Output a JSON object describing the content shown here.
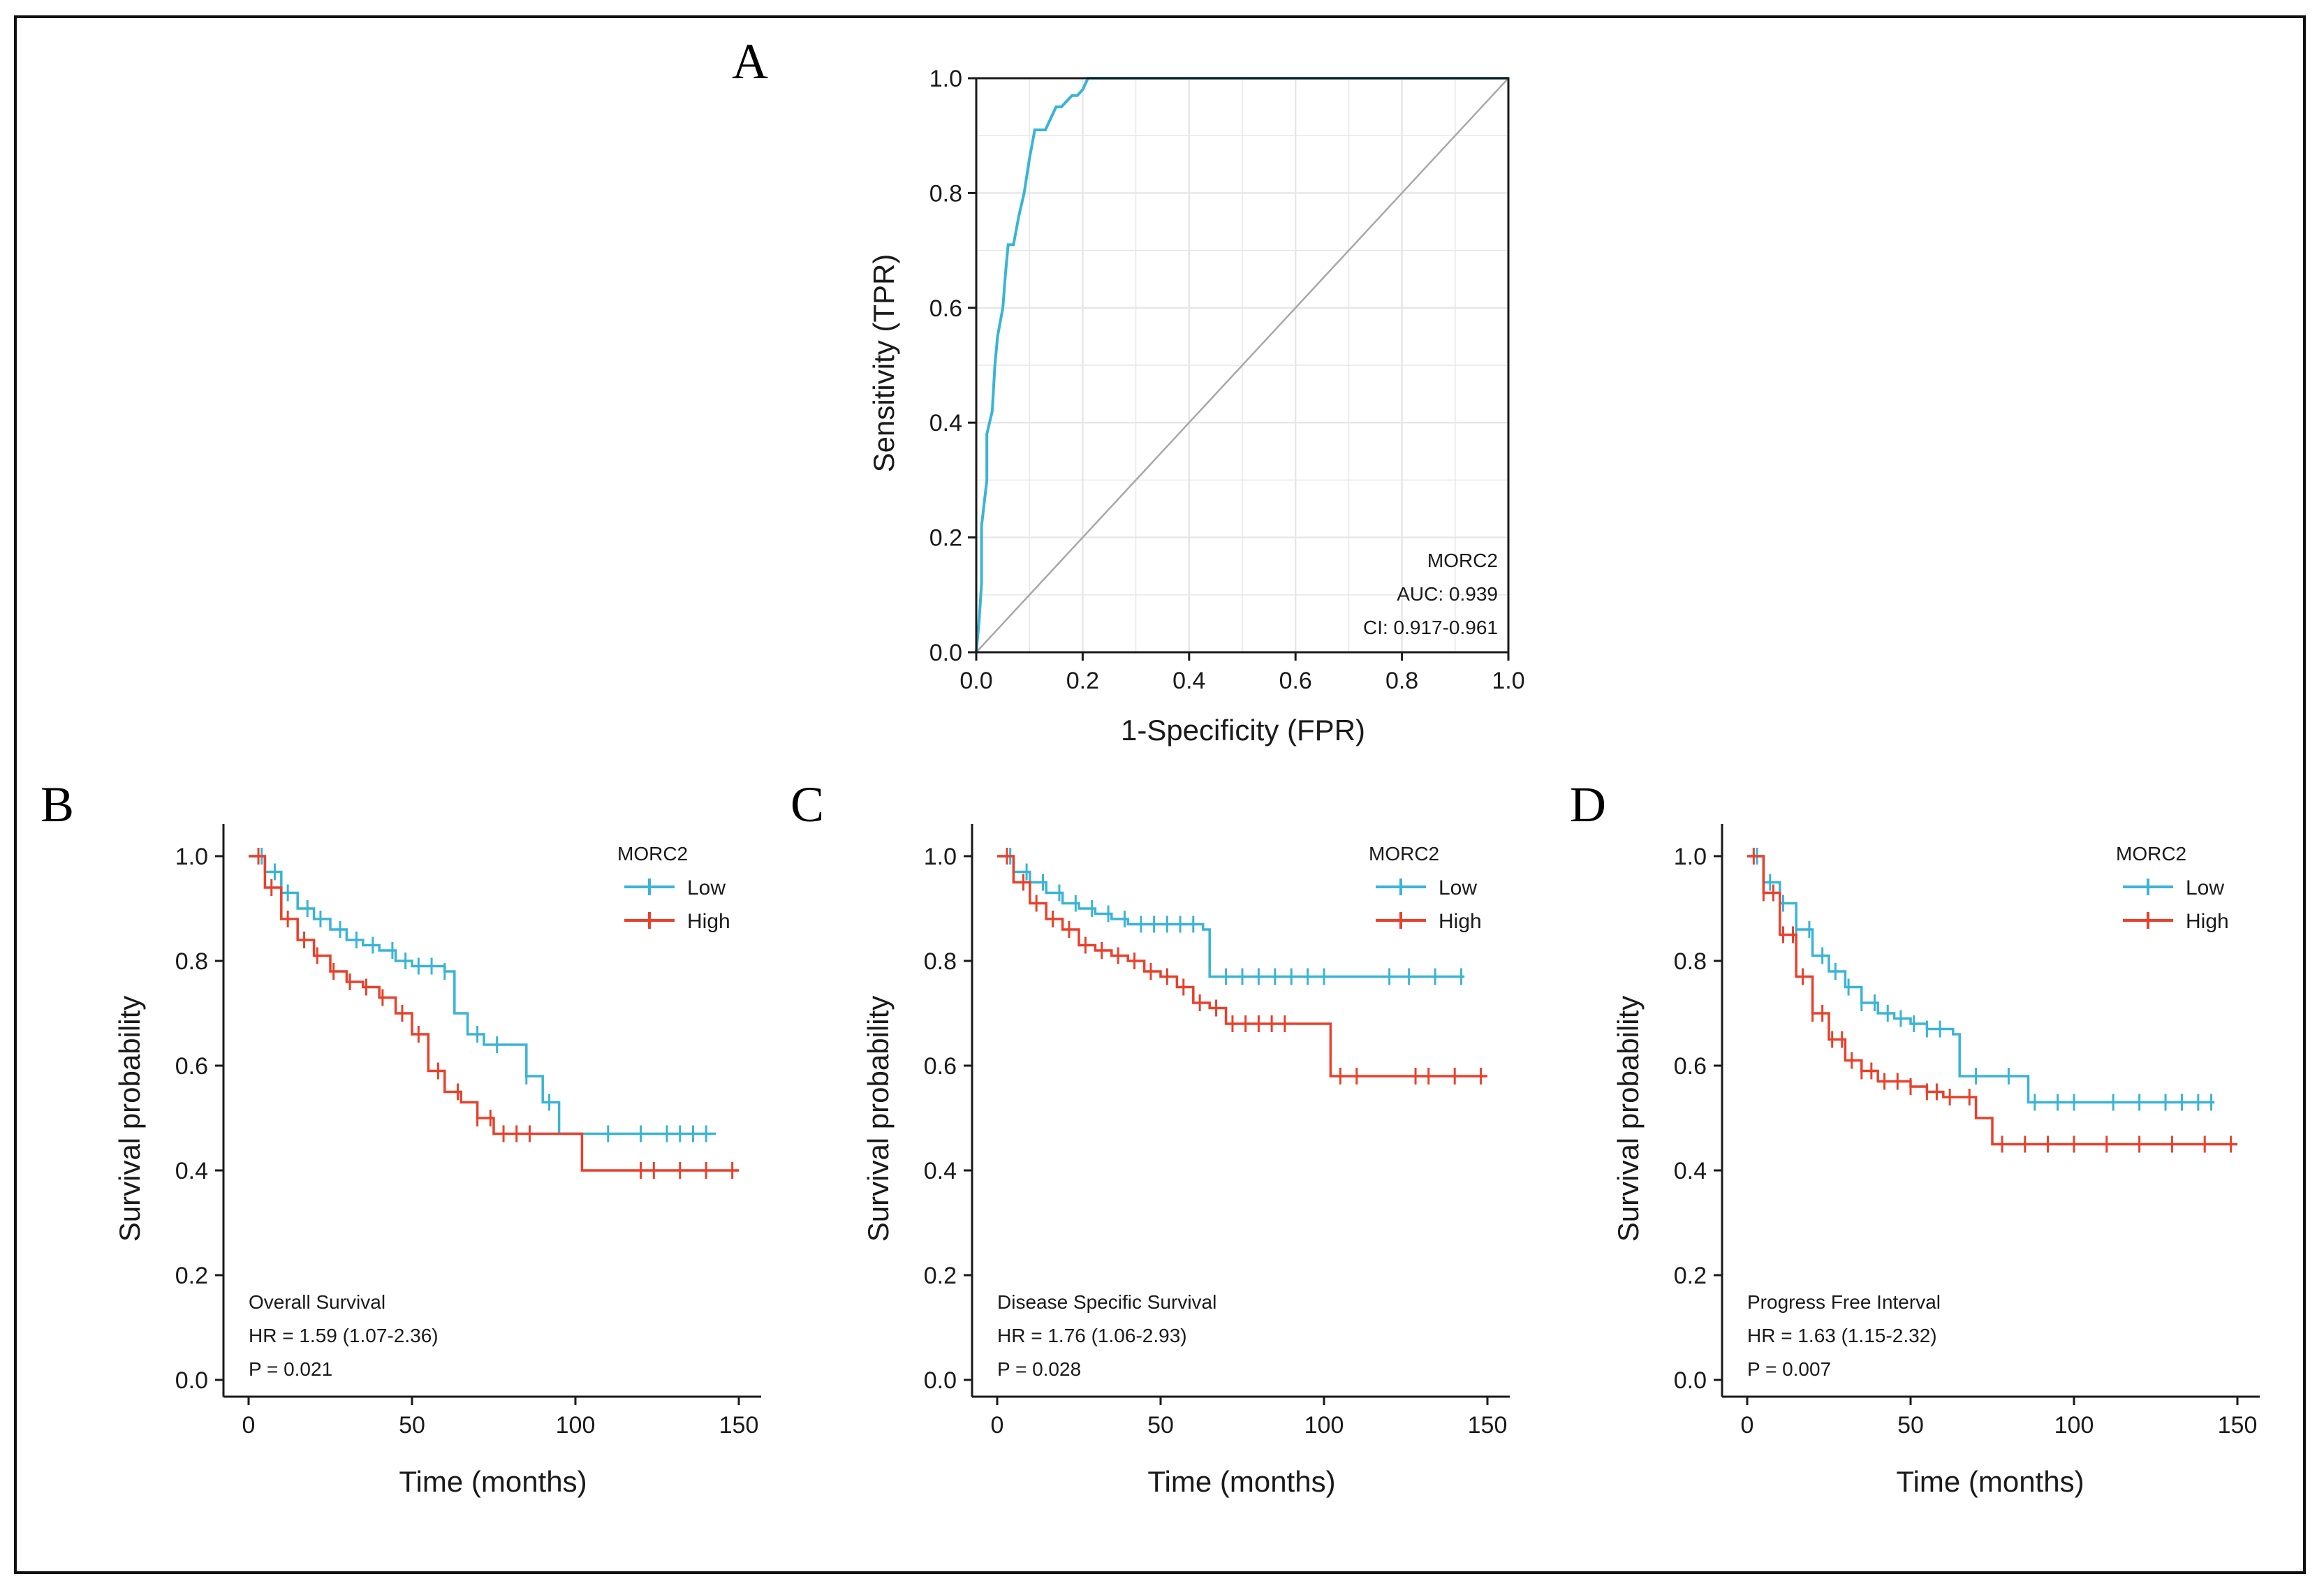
{
  "colors": {
    "low": "#3ab4d6",
    "high": "#e8412c",
    "diagonal": "#a8a8a8",
    "grid": "#e6e6e6",
    "axis": "#1a1a1a"
  },
  "chart_data": [
    {
      "id": "A",
      "panel_label": "A",
      "type": "line",
      "title": "",
      "xlabel": "1-Specificity (FPR)",
      "ylabel": "Sensitivity (TPR)",
      "xlim": [
        0,
        1
      ],
      "ylim": [
        0,
        1
      ],
      "xticks": [
        "0.0",
        "0.2",
        "0.4",
        "0.6",
        "0.8",
        "1.0"
      ],
      "yticks": [
        "0.0",
        "0.2",
        "0.4",
        "0.6",
        "0.8",
        "1.0"
      ],
      "grid": true,
      "series": [
        {
          "name": "MORC2",
          "color_key": "low",
          "x": [
            0,
            0.005,
            0.01,
            0.01,
            0.015,
            0.02,
            0.02,
            0.03,
            0.035,
            0.04,
            0.05,
            0.055,
            0.06,
            0.07,
            0.08,
            0.09,
            0.1,
            0.11,
            0.12,
            0.13,
            0.14,
            0.15,
            0.16,
            0.17,
            0.18,
            0.19,
            0.2,
            0.21,
            1.0
          ],
          "y": [
            0,
            0.05,
            0.12,
            0.22,
            0.26,
            0.3,
            0.38,
            0.42,
            0.5,
            0.55,
            0.6,
            0.66,
            0.71,
            0.71,
            0.76,
            0.8,
            0.86,
            0.91,
            0.91,
            0.91,
            0.93,
            0.95,
            0.95,
            0.96,
            0.97,
            0.97,
            0.98,
            1.0,
            1.0
          ]
        },
        {
          "name": "reference",
          "color_key": "diagonal",
          "x": [
            0,
            1
          ],
          "y": [
            0,
            1
          ]
        }
      ],
      "annotations": [
        "MORC2",
        "AUC: 0.939",
        "CI: 0.917-0.961"
      ]
    },
    {
      "id": "B",
      "panel_label": "B",
      "type": "line",
      "title": "",
      "xlabel": "Time (months)",
      "ylabel": "Survival probability",
      "xlim": [
        0,
        150
      ],
      "ylim": [
        0,
        1
      ],
      "xticks": [
        "0",
        "50",
        "100",
        "150"
      ],
      "yticks": [
        "0.0",
        "0.2",
        "0.4",
        "0.6",
        "0.8",
        "1.0"
      ],
      "legend": {
        "title": "MORC2",
        "entries": [
          "Low",
          "High"
        ],
        "placement": "top-right"
      },
      "annotations": [
        "Overall Survival",
        "HR = 1.59 (1.07-2.36)",
        "P = 0.021"
      ],
      "series": [
        {
          "name": "Low",
          "color_key": "low",
          "x": [
            0,
            5,
            10,
            15,
            20,
            25,
            30,
            35,
            40,
            45,
            50,
            55,
            60,
            63,
            67,
            72,
            80,
            85,
            90,
            95,
            100,
            110,
            120,
            130,
            143
          ],
          "y": [
            1.0,
            0.97,
            0.93,
            0.9,
            0.88,
            0.86,
            0.84,
            0.83,
            0.82,
            0.8,
            0.79,
            0.79,
            0.78,
            0.7,
            0.66,
            0.64,
            0.64,
            0.58,
            0.53,
            0.47,
            0.47,
            0.47,
            0.47,
            0.47,
            0.47
          ],
          "censor_x": [
            4,
            8,
            12,
            18,
            22,
            28,
            33,
            38,
            44,
            48,
            52,
            56,
            60,
            70,
            76,
            85,
            92,
            110,
            120,
            128,
            132,
            136,
            140
          ]
        },
        {
          "name": "High",
          "color_key": "high",
          "x": [
            0,
            5,
            10,
            15,
            20,
            25,
            30,
            35,
            40,
            45,
            50,
            55,
            60,
            65,
            70,
            75,
            80,
            90,
            95,
            100,
            102,
            110,
            120,
            130,
            140,
            150
          ],
          "y": [
            1.0,
            0.94,
            0.88,
            0.84,
            0.81,
            0.78,
            0.76,
            0.75,
            0.73,
            0.7,
            0.66,
            0.59,
            0.55,
            0.53,
            0.5,
            0.47,
            0.47,
            0.47,
            0.47,
            0.47,
            0.4,
            0.4,
            0.4,
            0.4,
            0.4,
            0.4
          ],
          "censor_x": [
            3,
            7,
            12,
            17,
            21,
            26,
            31,
            36,
            41,
            47,
            52,
            58,
            64,
            70,
            74,
            78,
            82,
            86,
            120,
            124,
            132,
            140,
            148
          ]
        }
      ]
    },
    {
      "id": "C",
      "panel_label": "C",
      "type": "line",
      "title": "",
      "xlabel": "Time (months)",
      "ylabel": "Survival probability",
      "xlim": [
        0,
        150
      ],
      "ylim": [
        0,
        1
      ],
      "xticks": [
        "0",
        "50",
        "100",
        "150"
      ],
      "yticks": [
        "0.0",
        "0.2",
        "0.4",
        "0.6",
        "0.8",
        "1.0"
      ],
      "legend": {
        "title": "MORC2",
        "entries": [
          "Low",
          "High"
        ],
        "placement": "top-right"
      },
      "annotations": [
        "Disease Specific Survival",
        "HR = 1.76 (1.06-2.93)",
        "P = 0.028"
      ],
      "series": [
        {
          "name": "Low",
          "color_key": "low",
          "x": [
            0,
            5,
            10,
            15,
            20,
            25,
            30,
            35,
            40,
            45,
            50,
            55,
            60,
            63,
            65,
            70,
            80,
            90,
            100,
            110,
            120,
            130,
            143
          ],
          "y": [
            1.0,
            0.97,
            0.95,
            0.93,
            0.91,
            0.9,
            0.89,
            0.88,
            0.87,
            0.87,
            0.87,
            0.87,
            0.87,
            0.86,
            0.77,
            0.77,
            0.77,
            0.77,
            0.77,
            0.77,
            0.77,
            0.77,
            0.77
          ],
          "censor_x": [
            4,
            9,
            14,
            19,
            24,
            29,
            34,
            39,
            44,
            48,
            52,
            56,
            60,
            70,
            75,
            80,
            85,
            90,
            95,
            100,
            120,
            126,
            134,
            142
          ]
        },
        {
          "name": "High",
          "color_key": "high",
          "x": [
            0,
            5,
            10,
            15,
            20,
            25,
            30,
            35,
            40,
            45,
            50,
            55,
            60,
            65,
            70,
            80,
            90,
            100,
            102,
            110,
            120,
            130,
            140,
            150
          ],
          "y": [
            1.0,
            0.95,
            0.91,
            0.88,
            0.86,
            0.83,
            0.82,
            0.81,
            0.8,
            0.78,
            0.77,
            0.75,
            0.72,
            0.71,
            0.68,
            0.68,
            0.68,
            0.68,
            0.58,
            0.58,
            0.58,
            0.58,
            0.58,
            0.58
          ],
          "censor_x": [
            3,
            8,
            12,
            17,
            22,
            27,
            32,
            37,
            42,
            47,
            52,
            57,
            62,
            67,
            72,
            76,
            80,
            84,
            88,
            105,
            110,
            128,
            132,
            140,
            148
          ]
        }
      ]
    },
    {
      "id": "D",
      "panel_label": "D",
      "type": "line",
      "title": "",
      "xlabel": "Time (months)",
      "ylabel": "Survival probability",
      "xlim": [
        0,
        150
      ],
      "ylim": [
        0,
        1
      ],
      "xticks": [
        "0",
        "50",
        "100",
        "150"
      ],
      "yticks": [
        "0.0",
        "0.2",
        "0.4",
        "0.6",
        "0.8",
        "1.0"
      ],
      "legend": {
        "title": "MORC2",
        "entries": [
          "Low",
          "High"
        ],
        "placement": "top-right"
      },
      "annotations": [
        "Progress Free Interval",
        "HR = 1.63 (1.15-2.32)",
        "P = 0.007"
      ],
      "series": [
        {
          "name": "Low",
          "color_key": "low",
          "x": [
            0,
            5,
            10,
            15,
            20,
            25,
            30,
            35,
            40,
            45,
            50,
            55,
            60,
            63,
            65,
            70,
            80,
            85,
            86,
            90,
            100,
            110,
            120,
            130,
            143
          ],
          "y": [
            1.0,
            0.95,
            0.91,
            0.86,
            0.81,
            0.78,
            0.75,
            0.72,
            0.7,
            0.69,
            0.68,
            0.67,
            0.67,
            0.66,
            0.58,
            0.58,
            0.58,
            0.58,
            0.53,
            0.53,
            0.53,
            0.53,
            0.53,
            0.53,
            0.53
          ],
          "censor_x": [
            3,
            7,
            11,
            15,
            19,
            23,
            27,
            31,
            35,
            39,
            43,
            47,
            51,
            55,
            59,
            70,
            80,
            88,
            95,
            100,
            112,
            120,
            128,
            133,
            138,
            142
          ]
        },
        {
          "name": "High",
          "color_key": "high",
          "x": [
            0,
            5,
            10,
            15,
            20,
            25,
            30,
            35,
            40,
            45,
            50,
            55,
            60,
            65,
            70,
            74,
            75,
            80,
            90,
            100,
            110,
            120,
            130,
            140,
            150
          ],
          "y": [
            1.0,
            0.93,
            0.85,
            0.77,
            0.7,
            0.65,
            0.61,
            0.59,
            0.57,
            0.57,
            0.56,
            0.55,
            0.54,
            0.54,
            0.5,
            0.5,
            0.45,
            0.45,
            0.45,
            0.45,
            0.45,
            0.45,
            0.45,
            0.45,
            0.45
          ],
          "censor_x": [
            2,
            5,
            8,
            11,
            14,
            17,
            20,
            23,
            26,
            29,
            32,
            35,
            38,
            42,
            46,
            50,
            55,
            58,
            62,
            68,
            78,
            85,
            92,
            100,
            110,
            120,
            130,
            140,
            148
          ]
        }
      ]
    }
  ]
}
